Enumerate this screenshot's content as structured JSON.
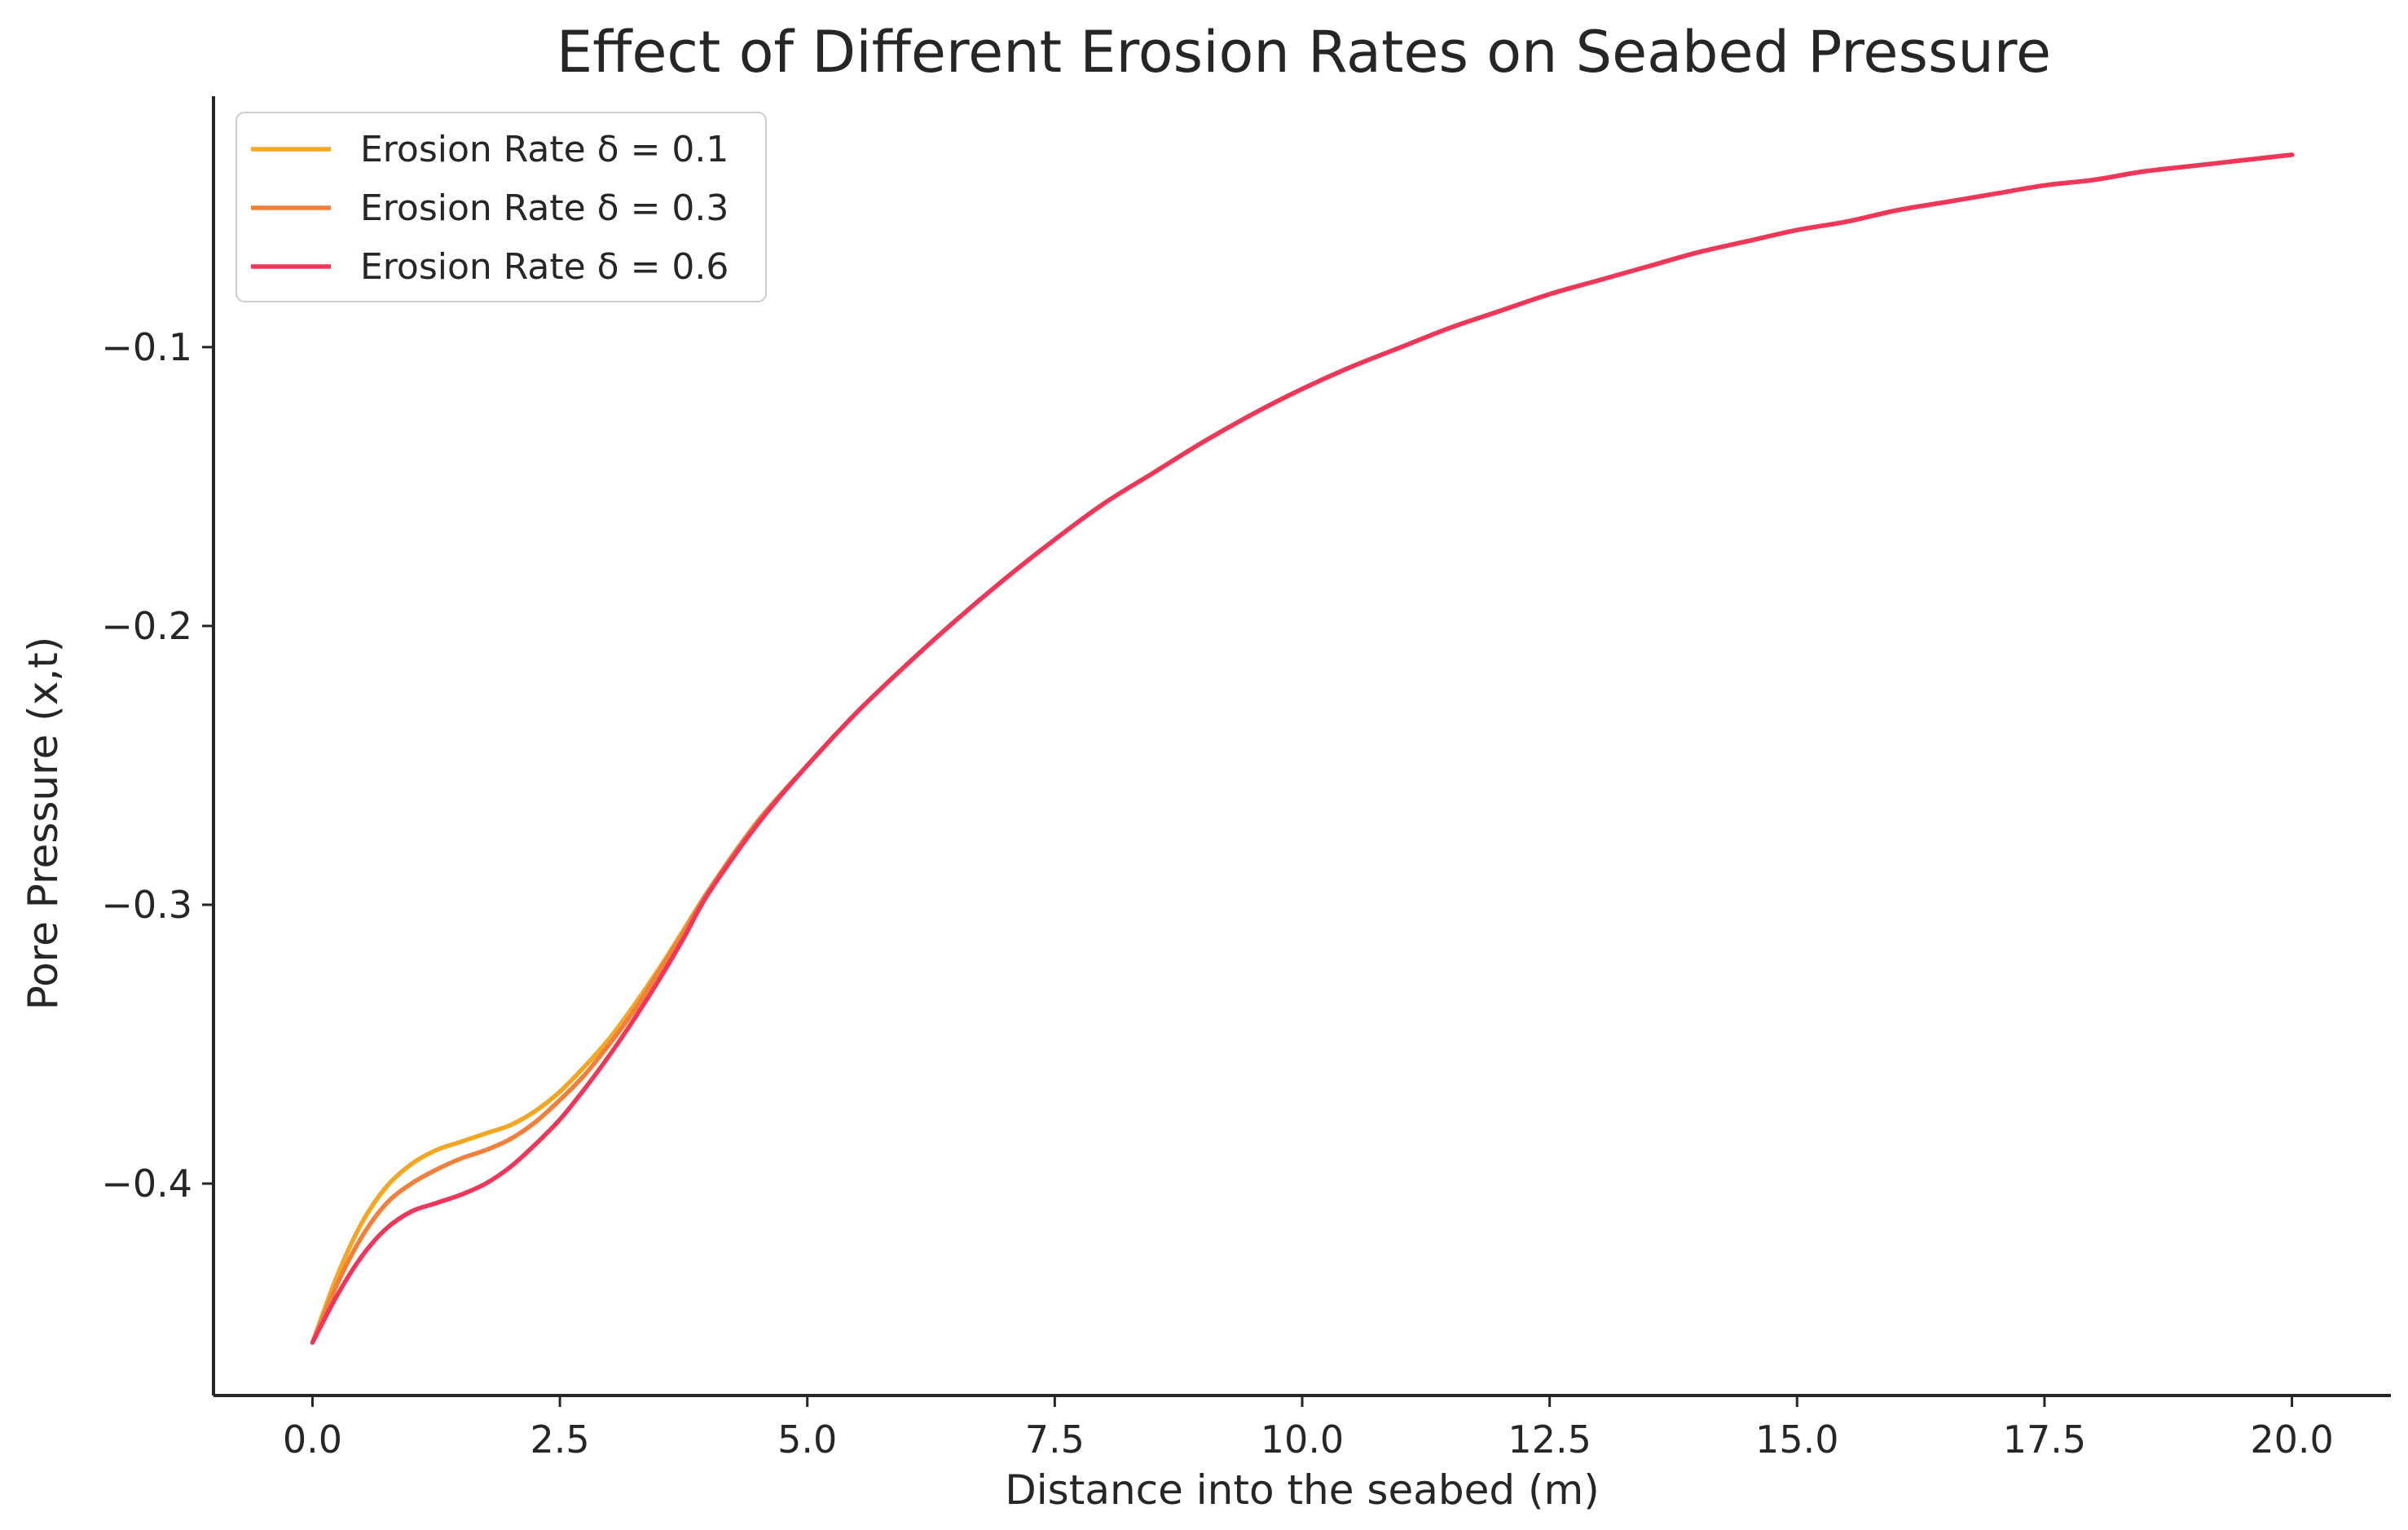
{
  "chart_data": {
    "type": "line",
    "title": "Effect of Different Erosion Rates on Seabed Pressure",
    "xlabel": "Distance into the seabed (m)",
    "ylabel": "Pore Pressure   (x,t)",
    "xlim": [
      -1.0,
      21.0
    ],
    "ylim": [
      -0.476,
      -0.01
    ],
    "x_ticks": [
      0.0,
      2.5,
      5.0,
      7.5,
      10.0,
      12.5,
      15.0,
      17.5,
      20.0
    ],
    "x_tick_labels": [
      "0.0",
      "2.5",
      "5.0",
      "7.5",
      "10.0",
      "12.5",
      "15.0",
      "17.5",
      "20.0"
    ],
    "y_ticks": [
      -0.1,
      -0.2,
      -0.3,
      -0.4
    ],
    "y_tick_labels": [
      "−0.1",
      "−0.2",
      "−0.3",
      "−0.4"
    ],
    "grid": false,
    "legend_position": "top-left",
    "x": [
      0.0,
      0.25,
      0.5,
      0.75,
      1.0,
      1.25,
      1.5,
      1.75,
      2.0,
      2.25,
      2.5,
      2.75,
      3.0,
      3.25,
      3.5,
      3.75,
      4.0,
      4.5,
      5.0,
      5.5,
      6.0,
      6.5,
      7.0,
      7.5,
      8.0,
      8.5,
      9.0,
      9.5,
      10.0,
      10.5,
      11.0,
      11.5,
      12.0,
      12.5,
      13.0,
      13.5,
      14.0,
      14.5,
      15.0,
      15.5,
      16.0,
      16.5,
      17.0,
      17.5,
      18.0,
      18.5,
      19.0,
      19.5,
      20.0
    ],
    "series": [
      {
        "name": "Erosion Rate δ = 0.1",
        "color": "#f5a623",
        "values": [
          -0.457,
          -0.433,
          -0.414,
          -0.401,
          -0.393,
          -0.388,
          -0.385,
          -0.382,
          -0.379,
          -0.374,
          -0.367,
          -0.358,
          -0.348,
          -0.336,
          -0.323,
          -0.309,
          -0.295,
          -0.27,
          -0.25,
          -0.231,
          -0.214,
          -0.198,
          -0.183,
          -0.169,
          -0.156,
          -0.145,
          -0.134,
          -0.124,
          -0.115,
          -0.107,
          -0.1,
          -0.093,
          -0.087,
          -0.081,
          -0.076,
          -0.071,
          -0.066,
          -0.062,
          -0.058,
          -0.055,
          -0.051,
          -0.048,
          -0.045,
          -0.042,
          -0.04,
          -0.037,
          -0.035,
          -0.033,
          -0.031
        ]
      },
      {
        "name": "Erosion Rate δ = 0.3",
        "color": "#f0803c",
        "values": [
          -0.457,
          -0.436,
          -0.419,
          -0.407,
          -0.4,
          -0.395,
          -0.391,
          -0.388,
          -0.384,
          -0.378,
          -0.37,
          -0.361,
          -0.35,
          -0.338,
          -0.324,
          -0.31,
          -0.295,
          -0.27,
          -0.25,
          -0.231,
          -0.214,
          -0.198,
          -0.183,
          -0.169,
          -0.156,
          -0.145,
          -0.134,
          -0.124,
          -0.115,
          -0.107,
          -0.1,
          -0.093,
          -0.087,
          -0.081,
          -0.076,
          -0.071,
          -0.066,
          -0.062,
          -0.058,
          -0.055,
          -0.051,
          -0.048,
          -0.045,
          -0.042,
          -0.04,
          -0.037,
          -0.035,
          -0.033,
          -0.031
        ]
      },
      {
        "name": "Erosion Rate δ = 0.6",
        "color": "#f0365a",
        "values": [
          -0.457,
          -0.44,
          -0.426,
          -0.416,
          -0.41,
          -0.407,
          -0.404,
          -0.4,
          -0.394,
          -0.386,
          -0.377,
          -0.366,
          -0.354,
          -0.341,
          -0.327,
          -0.312,
          -0.296,
          -0.271,
          -0.25,
          -0.231,
          -0.214,
          -0.198,
          -0.183,
          -0.169,
          -0.156,
          -0.145,
          -0.134,
          -0.124,
          -0.115,
          -0.107,
          -0.1,
          -0.093,
          -0.087,
          -0.081,
          -0.076,
          -0.071,
          -0.066,
          -0.062,
          -0.058,
          -0.055,
          -0.051,
          -0.048,
          -0.045,
          -0.042,
          -0.04,
          -0.037,
          -0.035,
          -0.033,
          -0.031
        ]
      }
    ]
  }
}
